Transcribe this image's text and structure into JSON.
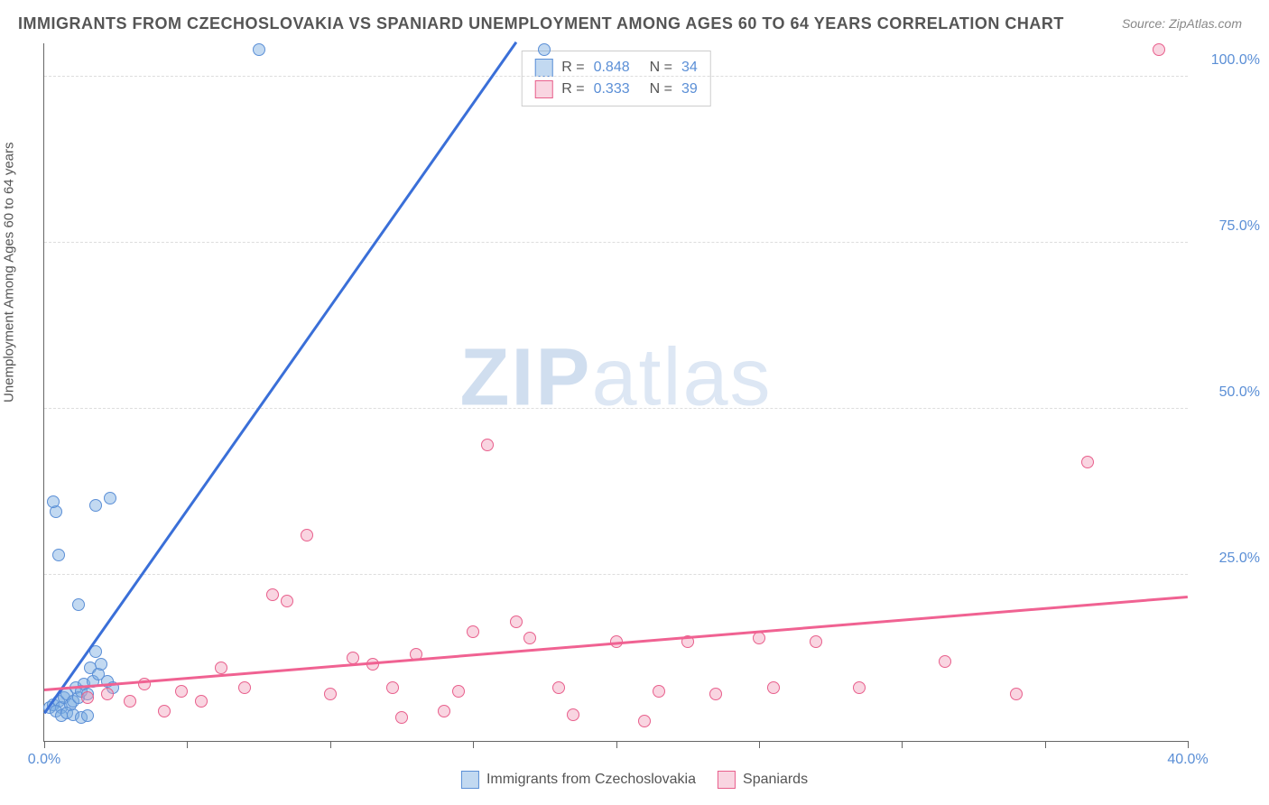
{
  "title": "IMMIGRANTS FROM CZECHOSLOVAKIA VS SPANIARD UNEMPLOYMENT AMONG AGES 60 TO 64 YEARS CORRELATION CHART",
  "source": "Source: ZipAtlas.com",
  "y_label": "Unemployment Among Ages 60 to 64 years",
  "watermark_bold": "ZIP",
  "watermark_rest": "atlas",
  "chart": {
    "type": "scatter",
    "xlim": [
      0,
      40
    ],
    "ylim": [
      0,
      105
    ],
    "x_ticks": [
      0,
      5,
      10,
      15,
      20,
      25,
      30,
      35,
      40
    ],
    "x_tick_labels": {
      "0": "0.0%",
      "40": "40.0%"
    },
    "y_ticks": [
      25,
      50,
      75,
      100
    ],
    "y_tick_labels": {
      "25": "25.0%",
      "50": "50.0%",
      "75": "75.0%",
      "100": "100.0%"
    },
    "grid_color": "#dddddd",
    "background_color": "#ffffff",
    "axis_color": "#666666",
    "label_fontsize": 15,
    "tick_fontsize": 16,
    "tick_color": "#5b8fd6",
    "series": [
      {
        "name": "Immigrants from Czechoslovakia",
        "marker_fill": "rgba(120,170,225,0.45)",
        "marker_stroke": "#5b8fd6",
        "marker_size": 14,
        "trend_color": "#3a6fd8",
        "trend_width": 2.5,
        "trend": {
          "x1": 0,
          "y1": 4,
          "x2": 16.5,
          "y2": 105
        },
        "R": "0.848",
        "N": "34",
        "points": [
          [
            0.2,
            5
          ],
          [
            0.3,
            5.5
          ],
          [
            0.5,
            6
          ],
          [
            0.6,
            5
          ],
          [
            0.7,
            6.5
          ],
          [
            0.8,
            7
          ],
          [
            0.9,
            5.5
          ],
          [
            1.0,
            6
          ],
          [
            1.1,
            8
          ],
          [
            1.2,
            6.5
          ],
          [
            1.3,
            7.5
          ],
          [
            1.4,
            8.5
          ],
          [
            1.5,
            7
          ],
          [
            1.6,
            11
          ],
          [
            1.7,
            9
          ],
          [
            1.8,
            13.5
          ],
          [
            1.9,
            10
          ],
          [
            2.0,
            11.5
          ],
          [
            2.2,
            9
          ],
          [
            2.4,
            8
          ],
          [
            0.4,
            4.5
          ],
          [
            0.6,
            3.8
          ],
          [
            0.8,
            4.2
          ],
          [
            1.0,
            4
          ],
          [
            1.3,
            3.5
          ],
          [
            1.5,
            3.8
          ],
          [
            0.5,
            28
          ],
          [
            1.2,
            20.5
          ],
          [
            0.4,
            34.5
          ],
          [
            1.8,
            35.5
          ],
          [
            0.3,
            36
          ],
          [
            2.3,
            36.5
          ],
          [
            7.5,
            104
          ],
          [
            17.5,
            104
          ]
        ]
      },
      {
        "name": "Spaniards",
        "marker_fill": "rgba(240,150,180,0.40)",
        "marker_stroke": "#e85f8c",
        "marker_size": 14,
        "trend_color": "#f06292",
        "trend_width": 2.5,
        "trend": {
          "x1": 0,
          "y1": 7.5,
          "x2": 40,
          "y2": 21.5
        },
        "R": "0.333",
        "N": "39",
        "points": [
          [
            1.5,
            6.5
          ],
          [
            2.2,
            7
          ],
          [
            3.0,
            6
          ],
          [
            3.5,
            8.5
          ],
          [
            4.2,
            4.5
          ],
          [
            4.8,
            7.5
          ],
          [
            5.5,
            6
          ],
          [
            6.2,
            11
          ],
          [
            7.0,
            8
          ],
          [
            8.0,
            22
          ],
          [
            8.5,
            21
          ],
          [
            9.2,
            31
          ],
          [
            10.0,
            7
          ],
          [
            10.8,
            12.5
          ],
          [
            11.5,
            11.5
          ],
          [
            12.2,
            8
          ],
          [
            12.5,
            3.5
          ],
          [
            13.0,
            13
          ],
          [
            14.0,
            4.5
          ],
          [
            14.5,
            7.5
          ],
          [
            15.0,
            16.5
          ],
          [
            15.5,
            44.5
          ],
          [
            16.5,
            18
          ],
          [
            17.0,
            15.5
          ],
          [
            18.0,
            8
          ],
          [
            18.5,
            4
          ],
          [
            20.0,
            15
          ],
          [
            21.0,
            3
          ],
          [
            21.5,
            7.5
          ],
          [
            22.5,
            15
          ],
          [
            23.5,
            7
          ],
          [
            25.0,
            15.5
          ],
          [
            25.5,
            8
          ],
          [
            27.0,
            15
          ],
          [
            28.5,
            8
          ],
          [
            31.5,
            12
          ],
          [
            34.0,
            7
          ],
          [
            36.5,
            42
          ],
          [
            39.0,
            104
          ]
        ]
      }
    ]
  },
  "legend_top": {
    "r_label": "R =",
    "n_label": "N ="
  },
  "legend_bottom": {
    "series1_label": "Immigrants from Czechoslovakia",
    "series2_label": "Spaniards"
  }
}
